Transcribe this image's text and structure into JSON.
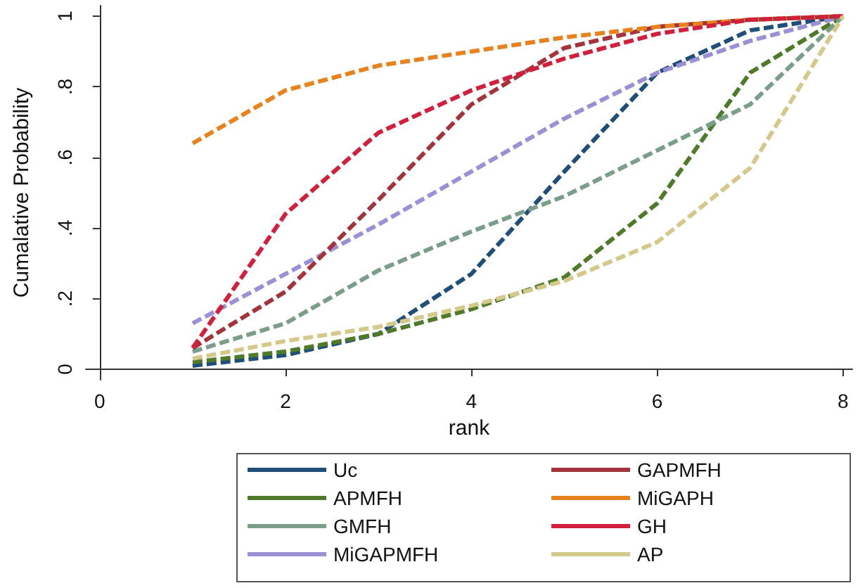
{
  "chart_data": {
    "type": "line",
    "xlabel": "rank",
    "ylabel": "Cumalative Probability",
    "x": [
      1,
      2,
      3,
      4,
      5,
      6,
      7,
      8
    ],
    "xlim": [
      -0.15,
      8.1
    ],
    "xticks": [
      0,
      2,
      4,
      6,
      8
    ],
    "ylim": [
      -0.03,
      1.03
    ],
    "yticks": [
      0,
      {
        "value": 0.2,
        "label": ".2"
      },
      {
        "value": 0.4,
        "label": ".4"
      },
      {
        "value": 0.6,
        "label": ".6"
      },
      {
        "value": 0.8,
        "label": ".8"
      },
      1
    ],
    "grid": false,
    "legend": "bottom",
    "marker": "none",
    "line_style": "dashed",
    "series": [
      {
        "name": "Uc",
        "color": "#1f4e79",
        "values": [
          0.01,
          0.04,
          0.1,
          0.27,
          0.56,
          0.84,
          0.96,
          1
        ]
      },
      {
        "name": "APMFH",
        "color": "#4e7a2a",
        "values": [
          0.02,
          0.05,
          0.1,
          0.17,
          0.26,
          0.47,
          0.84,
          1
        ]
      },
      {
        "name": "GMFH",
        "color": "#7a9e8a",
        "values": [
          0.05,
          0.13,
          0.28,
          0.39,
          0.49,
          0.62,
          0.75,
          1
        ]
      },
      {
        "name": "MiGAPMFH",
        "color": "#9b8fd6",
        "values": [
          0.13,
          0.27,
          0.41,
          0.56,
          0.71,
          0.84,
          0.93,
          1
        ]
      },
      {
        "name": "GAPMFH",
        "color": "#a3343c",
        "values": [
          0.06,
          0.22,
          0.48,
          0.75,
          0.91,
          0.97,
          0.99,
          1
        ]
      },
      {
        "name": "MiGAPH",
        "color": "#e8821e",
        "values": [
          0.64,
          0.79,
          0.86,
          0.9,
          0.94,
          0.97,
          0.99,
          1
        ]
      },
      {
        "name": "GH",
        "color": "#d21f3c",
        "values": [
          0.06,
          0.44,
          0.67,
          0.79,
          0.88,
          0.95,
          0.99,
          1
        ]
      },
      {
        "name": "AP",
        "color": "#d4c98a",
        "values": [
          0.03,
          0.08,
          0.12,
          0.18,
          0.25,
          0.36,
          0.57,
          1
        ]
      }
    ]
  }
}
